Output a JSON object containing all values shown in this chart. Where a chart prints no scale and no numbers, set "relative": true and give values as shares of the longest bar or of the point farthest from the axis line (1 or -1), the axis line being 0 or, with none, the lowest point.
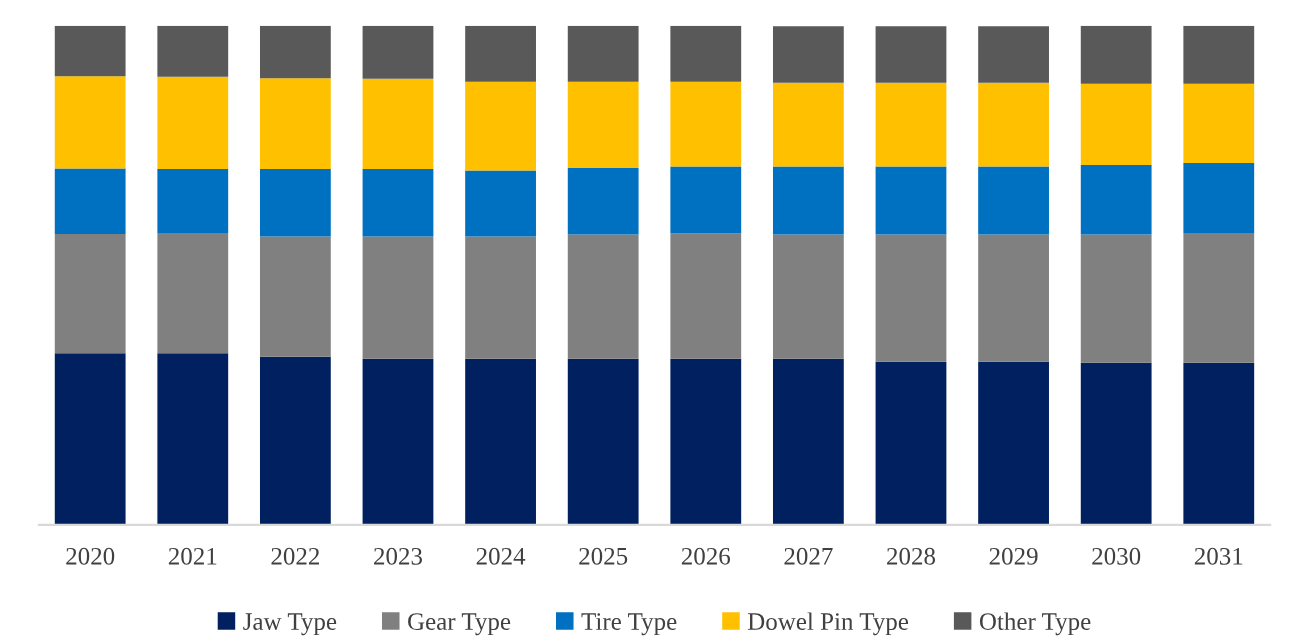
{
  "chart_data": {
    "type": "bar",
    "stacked": true,
    "relative": true,
    "legend": "bottom",
    "categories": [
      "2020",
      "2021",
      "2022",
      "2023",
      "2024",
      "2025",
      "2026",
      "2027",
      "2028",
      "2029",
      "2030",
      "2031"
    ],
    "series": [
      {
        "name": "Jaw Type",
        "color": "#002060",
        "values": [
          0.344,
          0.344,
          0.337,
          0.333,
          0.333,
          0.333,
          0.333,
          0.333,
          0.327,
          0.327,
          0.325,
          0.325
        ]
      },
      {
        "name": "Gear Type",
        "color": "#808080",
        "values": [
          0.239,
          0.241,
          0.241,
          0.245,
          0.245,
          0.249,
          0.251,
          0.249,
          0.255,
          0.255,
          0.257,
          0.26
        ]
      },
      {
        "name": "Tire Type",
        "color": "#0070c0",
        "values": [
          0.131,
          0.128,
          0.135,
          0.135,
          0.132,
          0.133,
          0.134,
          0.136,
          0.136,
          0.136,
          0.139,
          0.14
        ]
      },
      {
        "name": "Dowel Pin Type",
        "color": "#ffc000",
        "values": [
          0.185,
          0.185,
          0.182,
          0.181,
          0.178,
          0.173,
          0.17,
          0.168,
          0.168,
          0.168,
          0.163,
          0.159
        ]
      },
      {
        "name": "Other Type",
        "color": "#595959",
        "values": [
          0.101,
          0.102,
          0.105,
          0.106,
          0.112,
          0.112,
          0.112,
          0.113,
          0.113,
          0.113,
          0.116,
          0.116
        ]
      }
    ]
  }
}
